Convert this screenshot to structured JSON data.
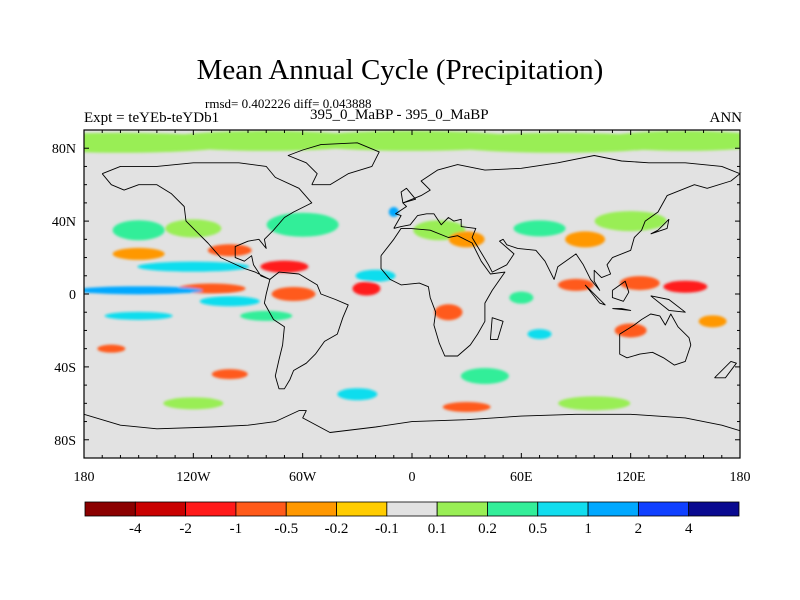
{
  "chart_data": {
    "type": "heatmap",
    "title": "Mean Annual Cycle (Precipitation)",
    "stats_line": "rmsd= 0.402226 diff= 0.043888",
    "left_label": "Expt = teYEb-teYDb1",
    "center_label": "395_0_MaBP - 395_0_MaBP",
    "right_label": "ANN",
    "projection": "cylindrical equidistant (lon/lat)",
    "x_range": [
      -180,
      180
    ],
    "y_range": [
      -90,
      90
    ],
    "x_ticks": [
      {
        "value": -180,
        "label": "180"
      },
      {
        "value": -120,
        "label": "120W"
      },
      {
        "value": -60,
        "label": "60W"
      },
      {
        "value": 0,
        "label": "0"
      },
      {
        "value": 60,
        "label": "60E"
      },
      {
        "value": 120,
        "label": "120E"
      },
      {
        "value": 180,
        "label": "180"
      }
    ],
    "y_ticks": [
      {
        "value": 80,
        "label": "80N"
      },
      {
        "value": 40,
        "label": "40N"
      },
      {
        "value": 0,
        "label": "0"
      },
      {
        "value": -40,
        "label": "40S"
      },
      {
        "value": -80,
        "label": "80S"
      }
    ],
    "colorbar": {
      "labels": [
        "-4",
        "-2",
        "-1",
        "-0.5",
        "-0.2",
        "-0.1",
        "0.1",
        "0.2",
        "0.5",
        "1",
        "2",
        "4"
      ],
      "colors": [
        "#8b0000",
        "#c90000",
        "#ff1a1a",
        "#ff5a1a",
        "#ff9800",
        "#ffcc00",
        "#e2e2e2",
        "#99ee55",
        "#33ee99",
        "#11ddee",
        "#00a8ff",
        "#1040ff",
        "#0a0a90"
      ]
    },
    "fields": [
      {
        "lon": -160,
        "lat": 83,
        "level": 7
      },
      {
        "lon": -80,
        "lat": 84,
        "level": 7
      },
      {
        "lon": 0,
        "lat": 84,
        "level": 7
      },
      {
        "lon": 80,
        "lat": 83,
        "level": 7
      },
      {
        "lon": 150,
        "lat": 84,
        "level": 7
      },
      {
        "lon": -150,
        "lat": 35,
        "level": 8
      },
      {
        "lon": -120,
        "lat": 36,
        "level": 7
      },
      {
        "lon": -60,
        "lat": 38,
        "level": 8
      },
      {
        "lon": 15,
        "lat": 35,
        "level": 7
      },
      {
        "lon": 70,
        "lat": 36,
        "level": 8
      },
      {
        "lon": 120,
        "lat": 40,
        "level": 7
      },
      {
        "lon": -10,
        "lat": 45,
        "level": 10
      },
      {
        "lon": 30,
        "lat": 30,
        "level": 4
      },
      {
        "lon": 95,
        "lat": 30,
        "level": 4
      },
      {
        "lon": -150,
        "lat": 22,
        "level": 4
      },
      {
        "lon": -100,
        "lat": 24,
        "level": 3
      },
      {
        "lon": -120,
        "lat": 15,
        "level": 9
      },
      {
        "lon": -70,
        "lat": 15,
        "level": 2
      },
      {
        "lon": -110,
        "lat": 3,
        "level": 3
      },
      {
        "lon": -65,
        "lat": 0,
        "level": 3
      },
      {
        "lon": -25,
        "lat": 3,
        "level": 2
      },
      {
        "lon": -150,
        "lat": 2,
        "level": 10
      },
      {
        "lon": -100,
        "lat": -4,
        "level": 9
      },
      {
        "lon": -20,
        "lat": 10,
        "level": 9
      },
      {
        "lon": -150,
        "lat": -12,
        "level": 9
      },
      {
        "lon": -80,
        "lat": -12,
        "level": 8
      },
      {
        "lon": -165,
        "lat": -30,
        "level": 3
      },
      {
        "lon": 150,
        "lat": 4,
        "level": 2
      },
      {
        "lon": 125,
        "lat": 6,
        "level": 3
      },
      {
        "lon": 90,
        "lat": 5,
        "level": 3
      },
      {
        "lon": 165,
        "lat": -15,
        "level": 4
      },
      {
        "lon": 60,
        "lat": -2,
        "level": 8
      },
      {
        "lon": 20,
        "lat": -10,
        "level": 3
      },
      {
        "lon": 120,
        "lat": -20,
        "level": 3
      },
      {
        "lon": 70,
        "lat": -22,
        "level": 9
      },
      {
        "lon": 40,
        "lat": -45,
        "level": 8
      },
      {
        "lon": -100,
        "lat": -44,
        "level": 3
      },
      {
        "lon": -30,
        "lat": -55,
        "level": 9
      },
      {
        "lon": 30,
        "lat": -62,
        "level": 3
      },
      {
        "lon": 100,
        "lat": -60,
        "level": 7
      },
      {
        "lon": -120,
        "lat": -60,
        "level": 7
      }
    ]
  }
}
